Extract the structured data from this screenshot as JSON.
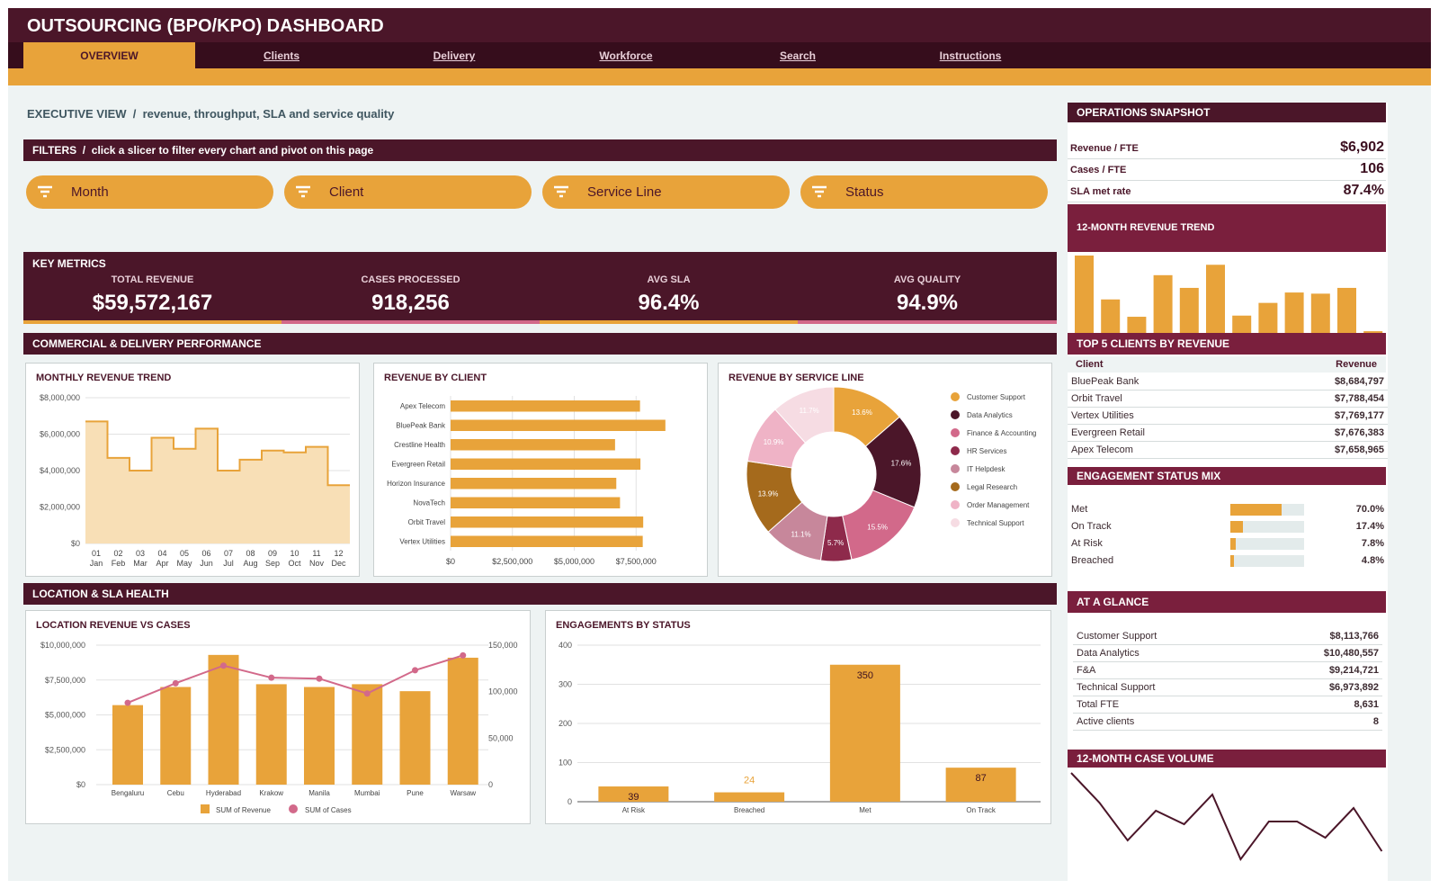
{
  "title": "OUTSOURCING (BPO/KPO) DASHBOARD",
  "tabs": [
    {
      "label": "OVERVIEW"
    },
    {
      "label": "Clients"
    },
    {
      "label": "Delivery"
    },
    {
      "label": "Workforce"
    },
    {
      "label": "Search"
    },
    {
      "label": "Instructions"
    }
  ],
  "exec_view": "EXECUTIVE VIEW  /  revenue, throughput, SLA and service quality",
  "filters_label": "FILTERS  /  click a slicer to filter every chart and pivot on this page",
  "slicers": [
    {
      "label": "Month"
    },
    {
      "label": "Client"
    },
    {
      "label": "Service Line"
    },
    {
      "label": "Status"
    }
  ],
  "key_metrics": {
    "title": "KEY METRICS",
    "items": [
      {
        "label": "TOTAL REVENUE",
        "value": "$59,572,167"
      },
      {
        "label": "CASES PROCESSED",
        "value": "918,256"
      },
      {
        "label": "AVG SLA",
        "value": "96.4%"
      },
      {
        "label": "AVG QUALITY",
        "value": "94.9%"
      }
    ]
  },
  "sections": {
    "commercial": "COMMERCIAL & DELIVERY PERFORMANCE",
    "location": "LOCATION & SLA HEALTH"
  },
  "colors": {
    "maroon": "#4b1629",
    "gold": "#e8a33a",
    "pink": "#d2698a"
  },
  "chart_data": [
    {
      "id": "monthly_revenue",
      "type": "area",
      "title": "MONTHLY REVENUE TREND",
      "x": [
        "01",
        "02",
        "03",
        "04",
        "05",
        "06",
        "07",
        "08",
        "09",
        "10",
        "11",
        "12"
      ],
      "x_sub": [
        "Jan",
        "Feb",
        "Mar",
        "Apr",
        "May",
        "Jun",
        "Jul",
        "Aug",
        "Sep",
        "Oct",
        "Nov",
        "Dec"
      ],
      "values": [
        6700000,
        4700000,
        4000000,
        5800000,
        5200000,
        6300000,
        4000000,
        4600000,
        5100000,
        5000000,
        5300000,
        3200000
      ],
      "yticks": [
        "$0",
        "$2,000,000",
        "$4,000,000",
        "$6,000,000",
        "$8,000,000"
      ],
      "ylim": [
        0,
        8000000
      ]
    },
    {
      "id": "revenue_by_client",
      "type": "bar",
      "title": "REVENUE BY CLIENT",
      "categories": [
        "Apex Telecom",
        "BluePeak Bank",
        "Crestline Health",
        "Evergreen Retail",
        "Horizon Insurance",
        "NovaTech",
        "Orbit Travel",
        "Vertex Utilities"
      ],
      "values": [
        7659000,
        8685000,
        6650000,
        7676000,
        6700000,
        6850000,
        7788000,
        7769000
      ],
      "xticks": [
        "$0",
        "$2,500,000",
        "$5,000,000",
        "$7,500,000"
      ],
      "xlim": [
        0,
        10000000
      ]
    },
    {
      "id": "revenue_by_service_line",
      "type": "pie",
      "title": "REVENUE BY SERVICE LINE",
      "slices": [
        {
          "label": "Customer Support",
          "value": 13.6,
          "text": "13.6%",
          "color": "#e8a33a"
        },
        {
          "label": "Data Analytics",
          "value": 17.6,
          "text": "17.6%",
          "color": "#4b1629"
        },
        {
          "label": "Finance & Accounting",
          "value": 15.5,
          "text": "15.5%",
          "color": "#d2698a"
        },
        {
          "label": "HR Services",
          "value": 5.7,
          "text": "5.7%",
          "color": "#8e2a4b"
        },
        {
          "label": "IT Helpdesk",
          "value": 11.1,
          "text": "11.1%",
          "color": "#c7879b"
        },
        {
          "label": "Legal Research",
          "value": 13.9,
          "text": "13.9%",
          "color": "#a56a1c"
        },
        {
          "label": "Order Management",
          "value": 10.9,
          "text": "10.9%",
          "color": "#efb3c6"
        },
        {
          "label": "Technical Support",
          "value": 11.7,
          "text": "11.7%",
          "color": "#f6dce3"
        }
      ]
    },
    {
      "id": "location_revenue_cases",
      "type": "bar",
      "title": "LOCATION REVENUE VS CASES",
      "categories": [
        "Bengaluru",
        "Cebu",
        "Hyderabad",
        "Krakow",
        "Manila",
        "Mumbai",
        "Pune",
        "Warsaw"
      ],
      "series": [
        {
          "name": "SUM of Revenue",
          "values": [
            5700000,
            7000000,
            9300000,
            7200000,
            7000000,
            7200000,
            6700000,
            9100000
          ]
        },
        {
          "name": "SUM of Cases",
          "values": [
            88000,
            109000,
            128000,
            115000,
            114000,
            98000,
            123000,
            139000
          ]
        }
      ],
      "yticks_left": [
        "$0",
        "$2,500,000",
        "$5,000,000",
        "$7,500,000",
        "$10,000,000"
      ],
      "yticks_right": [
        "0",
        "50,000",
        "100,000",
        "150,000"
      ],
      "ylim_left": [
        0,
        10000000
      ],
      "ylim_right": [
        0,
        150000
      ]
    },
    {
      "id": "engagements_by_status",
      "type": "bar",
      "title": "ENGAGEMENTS BY STATUS",
      "categories": [
        "At Risk",
        "Breached",
        "Met",
        "On Track"
      ],
      "values": [
        39,
        24,
        350,
        87
      ],
      "labels": [
        "39",
        "24",
        "350",
        "87"
      ],
      "yticks": [
        "0",
        "100",
        "200",
        "300",
        "400"
      ],
      "ylim": [
        0,
        400
      ]
    },
    {
      "id": "revenue_trend_12m",
      "type": "bar",
      "title": "12-MONTH REVENUE TREND",
      "values": [
        6700000,
        2900000,
        1400000,
        5000000,
        3900000,
        5900000,
        1500000,
        2600000,
        3500000,
        3400000,
        3900000,
        150000
      ]
    },
    {
      "id": "case_volume_12m",
      "type": "line",
      "title": "12-MONTH CASE VOLUME",
      "values": [
        87,
        76,
        62,
        73,
        68,
        79,
        55,
        69,
        69,
        63,
        74,
        58
      ]
    }
  ],
  "ops": {
    "title": "OPERATIONS SNAPSHOT",
    "rows": [
      {
        "label": "Revenue / FTE",
        "value": "$6,902"
      },
      {
        "label": "Cases / FTE",
        "value": "106"
      },
      {
        "label": "SLA met rate",
        "value": "87.4%"
      }
    ]
  },
  "top5": {
    "title": "TOP 5 CLIENTS BY REVENUE",
    "col1": "Client",
    "col2": "Revenue",
    "rows": [
      {
        "name": "BluePeak Bank",
        "value": "$8,684,797"
      },
      {
        "name": "Orbit Travel",
        "value": "$7,788,454"
      },
      {
        "name": "Vertex Utilities",
        "value": "$7,769,177"
      },
      {
        "name": "Evergreen Retail",
        "value": "$7,676,383"
      },
      {
        "name": "Apex Telecom",
        "value": "$7,658,965"
      }
    ]
  },
  "engagement_mix": {
    "title": "ENGAGEMENT STATUS MIX",
    "rows": [
      {
        "label": "Met",
        "pct": 70.0,
        "text": "70.0%"
      },
      {
        "label": "On Track",
        "pct": 17.4,
        "text": "17.4%"
      },
      {
        "label": "At Risk",
        "pct": 7.8,
        "text": "7.8%"
      },
      {
        "label": "Breached",
        "pct": 4.8,
        "text": "4.8%"
      }
    ]
  },
  "glance": {
    "title": "AT A GLANCE",
    "rows": [
      {
        "label": "Customer Support",
        "value": "$8,113,766"
      },
      {
        "label": "Data Analytics",
        "value": "$10,480,557"
      },
      {
        "label": "F&A",
        "value": "$9,214,721"
      },
      {
        "label": "Technical Support",
        "value": "$6,973,892"
      },
      {
        "label": "Total FTE",
        "value": "8,631"
      },
      {
        "label": "Active clients",
        "value": "8"
      }
    ]
  }
}
